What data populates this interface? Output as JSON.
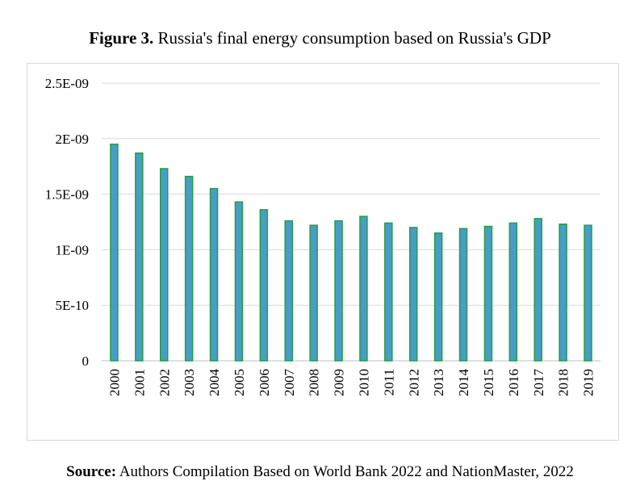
{
  "caption": {
    "label": "Figure 3.",
    "text": " Russia's final energy consumption based on Russia's GDP"
  },
  "source": {
    "label": "Source:",
    "text": " Authors Compilation Based on World Bank 2022 and NationMaster, 2022"
  },
  "colors": {
    "bar_fill": "#4a9cc8",
    "bar_stroke": "#21a041",
    "gridline": "#d9d9d9",
    "axis": "#bfbfbf"
  },
  "chart_data": {
    "type": "bar",
    "title": "",
    "xlabel": "",
    "ylabel": "",
    "grid": true,
    "legend": "none",
    "ylim": [
      0,
      2.5e-09
    ],
    "y_ticks": [
      {
        "value": 0,
        "label": "0"
      },
      {
        "value": 5e-10,
        "label": "5E-10"
      },
      {
        "value": 1e-09,
        "label": "1E-09"
      },
      {
        "value": 1.5e-09,
        "label": "1.5E-09"
      },
      {
        "value": 2e-09,
        "label": "2E-09"
      },
      {
        "value": 2.5e-09,
        "label": "2.5E-09"
      }
    ],
    "categories": [
      "2000",
      "2001",
      "2002",
      "2003",
      "2004",
      "2005",
      "2006",
      "2007",
      "2008",
      "2009",
      "2010",
      "2011",
      "2012",
      "2013",
      "2014",
      "2015",
      "2016",
      "2017",
      "2018",
      "2019"
    ],
    "values": [
      1.95e-09,
      1.87e-09,
      1.73e-09,
      1.66e-09,
      1.55e-09,
      1.43e-09,
      1.36e-09,
      1.26e-09,
      1.22e-09,
      1.26e-09,
      1.3e-09,
      1.24e-09,
      1.2e-09,
      1.15e-09,
      1.19e-09,
      1.21e-09,
      1.24e-09,
      1.28e-09,
      1.23e-09,
      1.22e-09
    ]
  }
}
